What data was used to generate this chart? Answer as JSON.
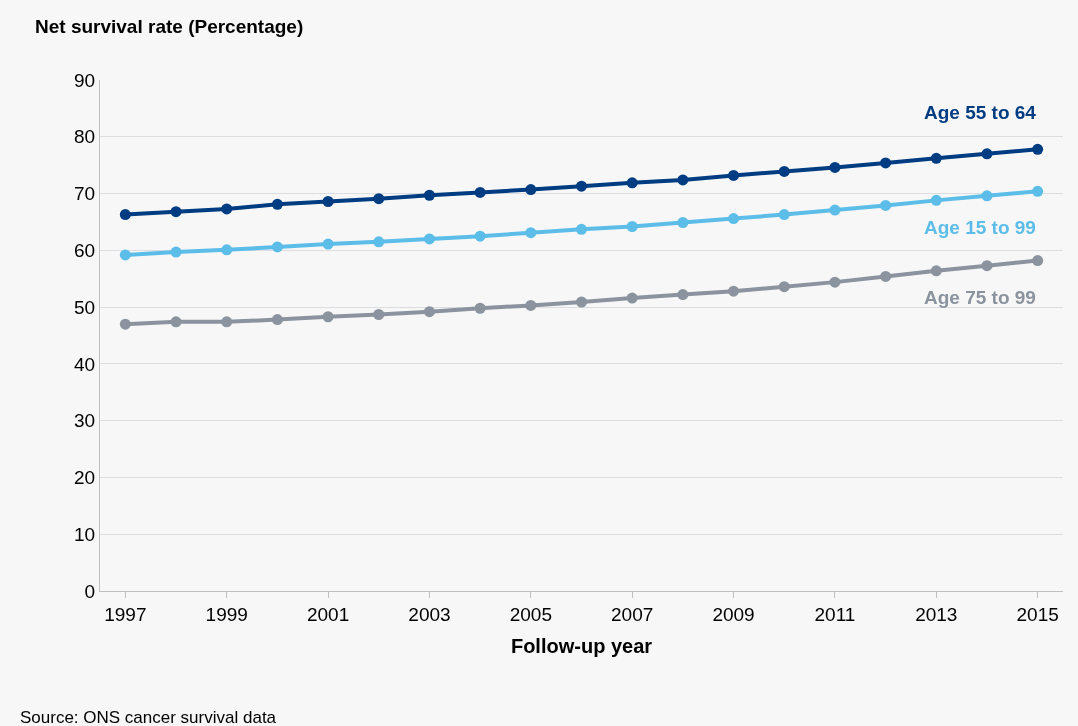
{
  "chart_data": {
    "type": "line",
    "ylabel": "Net survival rate (Percentage)",
    "xlabel": "Follow-up year",
    "x": [
      1997,
      1998,
      1999,
      2000,
      2001,
      2002,
      2003,
      2004,
      2005,
      2006,
      2007,
      2008,
      2009,
      2010,
      2011,
      2012,
      2013,
      2014,
      2015
    ],
    "series": [
      {
        "name": "Age 55 to 64",
        "color": "#003c82",
        "values": [
          66.3,
          66.8,
          67.3,
          68.1,
          68.6,
          69.1,
          69.7,
          70.2,
          70.7,
          71.3,
          71.9,
          72.4,
          73.2,
          73.9,
          74.6,
          75.4,
          76.2,
          77.0,
          77.8
        ]
      },
      {
        "name": "Age 15 to 99",
        "color": "#5bbde8",
        "values": [
          59.2,
          59.7,
          60.1,
          60.6,
          61.1,
          61.5,
          62.0,
          62.5,
          63.1,
          63.7,
          64.2,
          64.9,
          65.6,
          66.3,
          67.1,
          67.9,
          68.8,
          69.6,
          70.4
        ]
      },
      {
        "name": "Age 75 to 99",
        "color": "#8a939e",
        "values": [
          47.0,
          47.4,
          47.4,
          47.8,
          48.3,
          48.7,
          49.2,
          49.8,
          50.3,
          50.9,
          51.6,
          52.2,
          52.8,
          53.6,
          54.4,
          55.4,
          56.4,
          57.3,
          58.2
        ]
      }
    ],
    "xlim": [
      1996.5,
      2015.5
    ],
    "xticks": [
      1997,
      1999,
      2001,
      2003,
      2005,
      2007,
      2009,
      2011,
      2013,
      2015
    ],
    "ylim": [
      0,
      90
    ],
    "yticks": [
      0,
      10,
      20,
      30,
      40,
      50,
      60,
      70,
      80,
      90
    ],
    "grid": "y",
    "legend": false,
    "marker": "circle",
    "line_style": "solid",
    "annotations": [
      "Source: ONS cancer survival data"
    ]
  }
}
